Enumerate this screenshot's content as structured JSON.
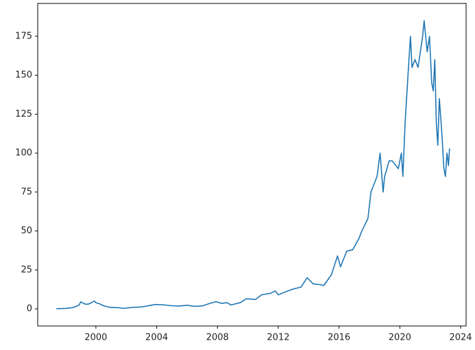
{
  "chart_data": {
    "type": "line",
    "color": "#1f77b4",
    "x": [
      1997.4,
      1998.0,
      1998.5,
      1998.9,
      1999.0,
      1999.3,
      1999.5,
      1999.9,
      2000.0,
      2000.3,
      2000.5,
      2000.9,
      2001.5,
      2001.8,
      2002.5,
      2003.0,
      2003.9,
      2004.5,
      2005.0,
      2005.5,
      2006.0,
      2006.5,
      2007.0,
      2007.5,
      2007.9,
      2008.3,
      2008.6,
      2008.9,
      2009.5,
      2009.9,
      2010.5,
      2010.9,
      2011.5,
      2011.8,
      2012.0,
      2012.5,
      2012.9,
      2013.5,
      2013.9,
      2014.3,
      2014.8,
      2015.0,
      2015.5,
      2015.9,
      2016.1,
      2016.5,
      2016.9,
      2017.3,
      2017.5,
      2017.9,
      2018.1,
      2018.5,
      2018.7,
      2018.9,
      2019.0,
      2019.3,
      2019.5,
      2019.9,
      2020.1,
      2020.2,
      2020.35,
      2020.6,
      2020.7,
      2020.8,
      2021.0,
      2021.2,
      2021.5,
      2021.6,
      2021.8,
      2021.95,
      2022.1,
      2022.2,
      2022.3,
      2022.4,
      2022.5,
      2022.6,
      2022.75,
      2022.9,
      2023.0,
      2023.1,
      2023.2,
      2023.27
    ],
    "values": [
      0.1,
      0.25,
      0.8,
      2.5,
      4.5,
      3,
      3,
      5,
      4,
      3,
      2,
      1,
      0.7,
      0.35,
      1,
      1.2,
      2.8,
      2.5,
      2,
      1.8,
      2.3,
      1.6,
      1.9,
      3.5,
      4.6,
      3.5,
      4,
      2.5,
      4,
      6.5,
      6,
      9,
      10,
      11.5,
      9,
      11,
      12.5,
      14,
      20,
      16,
      15.5,
      15,
      22,
      34,
      27,
      37,
      38,
      45,
      50,
      58,
      75,
      85,
      100,
      75,
      85,
      95,
      95,
      90,
      100,
      85,
      120,
      160,
      175,
      155,
      160,
      155,
      175,
      185,
      165,
      175,
      145,
      140,
      160,
      120,
      105,
      135,
      115,
      90,
      85,
      100,
      92,
      103
    ],
    "xlim": [
      1996.17,
      2024.36
    ],
    "xticks": [
      2000,
      2004,
      2008,
      2012,
      2016,
      2020,
      2024
    ],
    "ylim": [
      -11,
      196.1
    ],
    "yticks": [
      0,
      25,
      50,
      75,
      100,
      125,
      150,
      175
    ]
  }
}
